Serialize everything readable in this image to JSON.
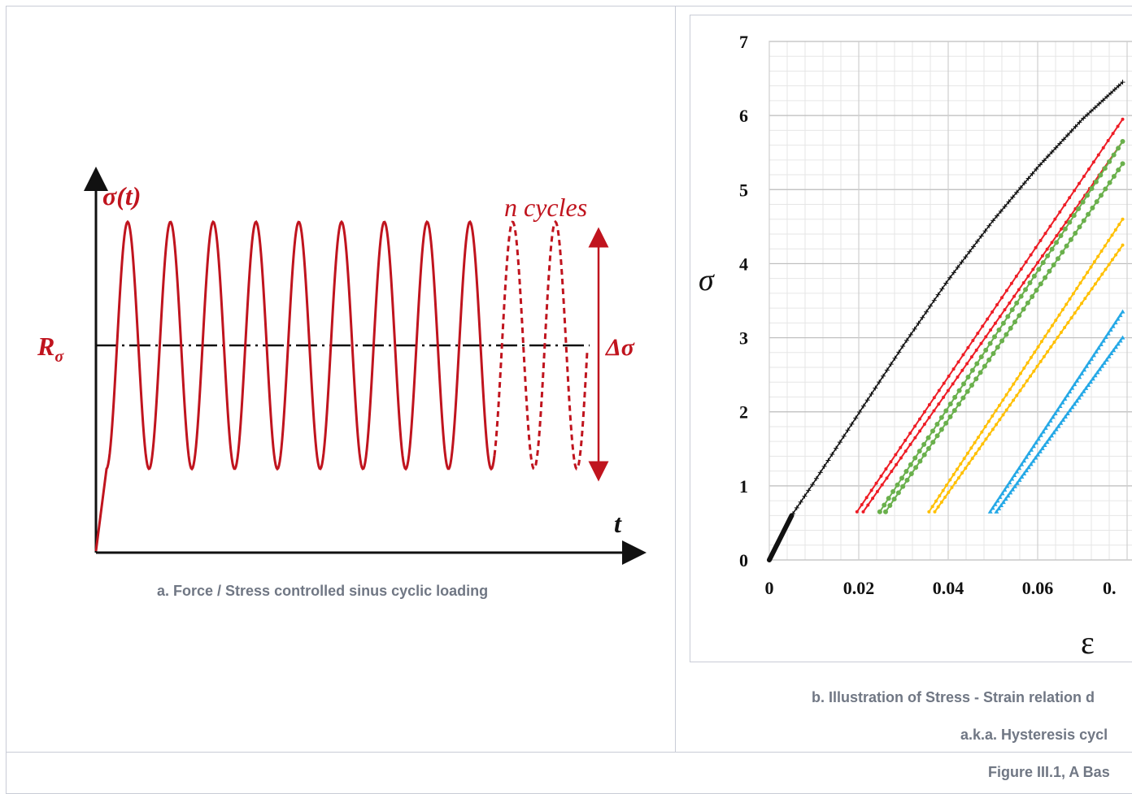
{
  "figure_caption": "Figure III.1, A Bas",
  "panel_a": {
    "caption": "a. Force / Stress controlled sinus cyclic loading",
    "labels": {
      "y_axis": "σ(t)",
      "x_axis": "t",
      "mean": "R",
      "mean_sub": "σ",
      "cycles": "n cycles",
      "range": "Δσ"
    },
    "colors": {
      "curve": "#c0141e",
      "axis": "#111111"
    }
  },
  "panel_b": {
    "caption_line1": "b. Illustration of Stress - Strain relation d",
    "caption_line2": "a.k.a. Hysteresis cycl",
    "y_label": "σ",
    "x_label": "ε",
    "y_ticks": [
      "0",
      "1",
      "2",
      "3",
      "4",
      "5",
      "6",
      "7"
    ],
    "x_ticks": [
      "0",
      "0.02",
      "0.04",
      "0.06",
      "0."
    ],
    "colors": {
      "monotonic": "#111111",
      "red": "#ee1c25",
      "green": "#6ab04c",
      "yellow": "#ffc000",
      "blue": "#24a8e6"
    }
  },
  "chart_data": {
    "type": "line",
    "title": "",
    "xlabel": "ε",
    "ylabel": "σ",
    "xlim": [
      0,
      0.079
    ],
    "ylim": [
      0,
      7
    ],
    "grid": true,
    "series": [
      {
        "x": [
          0,
          0.005,
          0.01,
          0.02,
          0.03,
          0.04,
          0.05,
          0.06,
          0.07,
          0.079
        ],
        "y": [
          0,
          0.6,
          1.05,
          1.98,
          2.9,
          3.78,
          4.58,
          5.3,
          5.95,
          6.45
        ]
      },
      {
        "x": [
          0.0196,
          0.079
        ],
        "y": [
          0.65,
          5.95
        ]
      },
      {
        "x": [
          0.021,
          0.079
        ],
        "y": [
          0.65,
          5.65
        ]
      },
      {
        "x": [
          0.0247,
          0.079
        ],
        "y": [
          0.65,
          5.65
        ]
      },
      {
        "x": [
          0.026,
          0.079
        ],
        "y": [
          0.65,
          5.35
        ]
      },
      {
        "x": [
          0.0357,
          0.079
        ],
        "y": [
          0.65,
          4.6
        ]
      },
      {
        "x": [
          0.037,
          0.079
        ],
        "y": [
          0.65,
          4.25
        ]
      },
      {
        "x": [
          0.0494,
          0.079
        ],
        "y": [
          0.65,
          3.35
        ]
      },
      {
        "x": [
          0.0508,
          0.079
        ],
        "y": [
          0.65,
          3.0
        ]
      }
    ]
  }
}
